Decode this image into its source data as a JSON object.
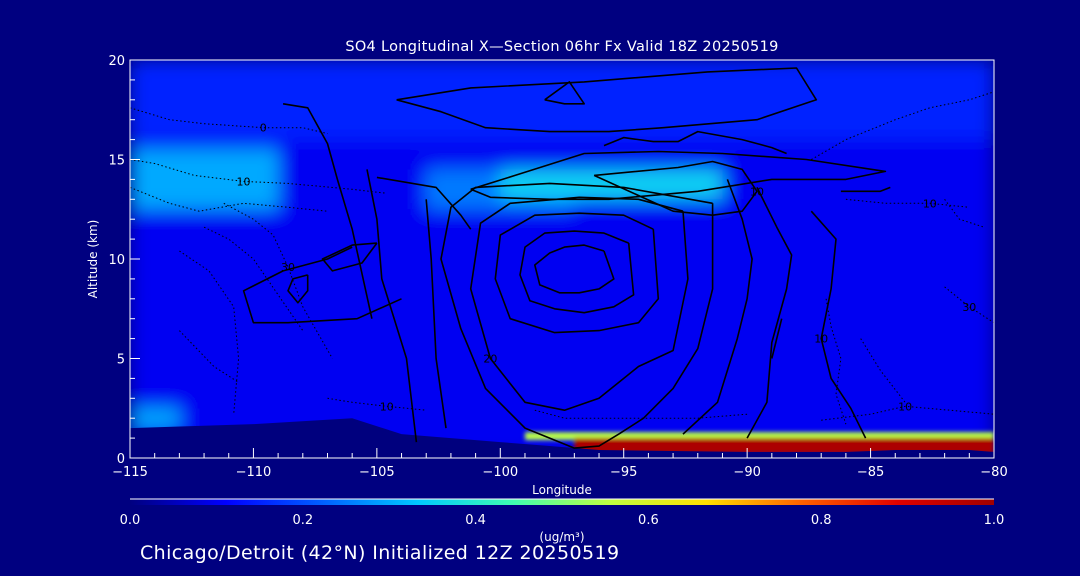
{
  "chart_data": {
    "type": "heatmap",
    "title": "SO4 Longitudinal X—Section 06hr  Fx Valid 18Z 20250519",
    "xlabel": "Longitude",
    "ylabel": "Altitude (km)",
    "xlim": [
      -115,
      -80
    ],
    "ylim": [
      0,
      20
    ],
    "x_ticks": [
      -115,
      -110,
      -105,
      -100,
      -95,
      -90,
      -85,
      -80
    ],
    "y_ticks": [
      0,
      5,
      10,
      15,
      20
    ],
    "colorbar": {
      "unit": "(ug/m³)",
      "min": 0.0,
      "max": 1.0,
      "ticks": [
        "0.0",
        "0.2",
        "0.4",
        "0.6",
        "0.8",
        "1.0"
      ],
      "colors": [
        "#000080",
        "#0000ff",
        "#0060ff",
        "#00c8ff",
        "#40ffb0",
        "#c0ff40",
        "#ffe000",
        "#ff6000",
        "#e00000",
        "#a00000"
      ]
    },
    "field_regions": [
      {
        "x": [
          -115,
          -80
        ],
        "y": [
          0,
          20
        ],
        "value": 0.1
      },
      {
        "x": [
          -115,
          -80
        ],
        "y": [
          16,
          20
        ],
        "value": 0.15
      },
      {
        "x": [
          -115,
          -109
        ],
        "y": [
          12.5,
          15.5
        ],
        "value": 0.3
      },
      {
        "x": [
          -103,
          -97
        ],
        "y": [
          12.5,
          14.5
        ],
        "value": 0.25
      },
      {
        "x": [
          -100,
          -91
        ],
        "y": [
          13,
          14.5
        ],
        "value": 0.35
      },
      {
        "x": [
          -115,
          -113
        ],
        "y": [
          1.5,
          2.5
        ],
        "value": 0.3
      },
      {
        "x": [
          -99,
          -80
        ],
        "y": [
          0.9,
          1.3
        ],
        "value": 0.55
      },
      {
        "x": [
          -97,
          -80
        ],
        "y": [
          0.2,
          1.0
        ],
        "value": 0.98
      }
    ],
    "terrain": {
      "x": [
        -115,
        -110,
        -106,
        -104,
        -100,
        -98,
        -96,
        -90,
        -86,
        -84,
        -81,
        -80
      ],
      "y": [
        1.5,
        1.7,
        2.0,
        1.2,
        0.8,
        0.6,
        0.4,
        0.3,
        0.3,
        0.4,
        0.4,
        0.3
      ]
    },
    "contours_solid": [
      {
        "label": "",
        "x": [
          -95.8,
          -95.4,
          -96.0,
          -96.4,
          -96.8,
          -97.6,
          -98.4,
          -98.6,
          -98.0,
          -97.4,
          -96.6,
          -95.8
        ],
        "y": [
          10.4,
          9.0,
          8.5,
          8.4,
          8.3,
          8.3,
          8.7,
          9.7,
          10.3,
          10.6,
          10.7,
          10.4
        ]
      },
      {
        "label": "",
        "x": [
          -94.8,
          -94.6,
          -95.4,
          -96.6,
          -97.8,
          -98.8,
          -99.2,
          -99.0,
          -98.2,
          -97.0,
          -95.8,
          -94.8
        ],
        "y": [
          10.8,
          8.2,
          7.6,
          7.3,
          7.5,
          7.9,
          9.2,
          10.6,
          11.3,
          11.4,
          11.3,
          10.8
        ]
      },
      {
        "label": "",
        "x": [
          -93.8,
          -93.6,
          -94.4,
          -96.0,
          -97.8,
          -99.6,
          -100.2,
          -100.0,
          -98.6,
          -96.8,
          -95.0,
          -93.8
        ],
        "y": [
          11.5,
          8.0,
          6.8,
          6.4,
          6.3,
          7.0,
          9.0,
          11.2,
          12.2,
          12.3,
          12.2,
          11.5
        ]
      },
      {
        "label": "20",
        "x": [
          -92.6,
          -92.4,
          -93.0,
          -94.4,
          -96.0,
          -97.4,
          -99.0,
          -100.4,
          -101.2,
          -100.8,
          -99.6,
          -96.8,
          -94.4,
          -92.6
        ],
        "y": [
          12.4,
          9.0,
          5.4,
          4.6,
          3.0,
          2.4,
          2.8,
          5.0,
          8.5,
          11.8,
          12.8,
          13.1,
          13.0,
          12.4
        ]
      },
      {
        "label": "",
        "x": [
          -91.4,
          -91.4,
          -92.0,
          -93.0,
          -94.2,
          -95.2,
          -96.0,
          -97.0,
          -99.0,
          -100.6,
          -101.6,
          -102.4,
          -102.0,
          -101.0,
          -98.0,
          -95.0,
          -91.4
        ],
        "y": [
          12.8,
          8.5,
          5.5,
          3.5,
          2.0,
          1.2,
          0.6,
          0.5,
          1.5,
          3.5,
          6.5,
          10.0,
          12.6,
          13.6,
          13.8,
          13.6,
          12.8
        ]
      },
      {
        "label": "10",
        "x": [
          -96.2,
          -92.8,
          -91.4,
          -90.2,
          -89.6,
          -90.2,
          -91.4,
          -93.0,
          -96.2
        ],
        "y": [
          14.2,
          14.6,
          14.9,
          14.5,
          13.4,
          12.4,
          12.2,
          12.4,
          14.2
        ]
      },
      {
        "label": "",
        "x": [
          -101.2,
          -99.4,
          -96.6,
          -93.6,
          -91.0,
          -87.6,
          -84.4,
          -86.0,
          -89.0,
          -92.0,
          -95.6,
          -98.0,
          -100.4,
          -101.2
        ],
        "y": [
          13.5,
          14.2,
          15.3,
          15.4,
          15.3,
          15.0,
          14.4,
          14.0,
          14.0,
          13.4,
          13.0,
          13.0,
          13.1,
          13.5
        ]
      },
      {
        "label": "",
        "x": [
          -105,
          -102.6,
          -101.6,
          -101.2
        ],
        "y": [
          14.1,
          13.6,
          12.2,
          11.5
        ]
      },
      {
        "label": "",
        "x": [
          -95.8,
          -95.0,
          -93.8,
          -92.8,
          -92.0,
          -90.2,
          -89.0,
          -88.4
        ],
        "y": [
          15.7,
          16.1,
          15.9,
          15.9,
          16.4,
          16.0,
          15.6,
          15.3
        ]
      },
      {
        "label": "",
        "x": [
          -86.2,
          -84.6,
          -84.2
        ],
        "y": [
          13.4,
          13.4,
          13.6
        ]
      },
      {
        "label": "",
        "x": [
          -90.8,
          -90.2,
          -89.8,
          -90.0,
          -90.4,
          -91.2,
          -92.6
        ],
        "y": [
          14.0,
          12.0,
          10.0,
          8.0,
          6.0,
          2.8,
          1.2
        ]
      },
      {
        "label": "",
        "x": [
          -89.6,
          -88.8,
          -88.2,
          -88.4,
          -89.0,
          -89.2,
          -90.0
        ],
        "y": [
          13.6,
          11.6,
          10.2,
          8.5,
          5.8,
          2.8,
          1.0
        ]
      },
      {
        "label": "10",
        "x": [
          -87.4,
          -86.4,
          -86.6,
          -87.0,
          -86.6,
          -85.8,
          -85.2
        ],
        "y": [
          12.4,
          11.0,
          8.5,
          6.0,
          4.0,
          2.5,
          1.0
        ]
      },
      {
        "label": "",
        "x": [
          -88.6,
          -89.0
        ],
        "y": [
          7.0,
          5.0
        ]
      },
      {
        "label": "",
        "x": [
          -103,
          -102.8,
          -102.6,
          -102.2
        ],
        "y": [
          13.0,
          10.0,
          5.0,
          1.5
        ]
      },
      {
        "label": "",
        "x": [
          -105.4,
          -105.0,
          -104.8,
          -103.8,
          -103.4
        ],
        "y": [
          14.5,
          12.0,
          9.0,
          5.0,
          0.8
        ]
      },
      {
        "label": "",
        "x": [
          -108.8,
          -107.8,
          -107.0,
          -106.6,
          -106.0,
          -105.2
        ],
        "y": [
          17.8,
          17.6,
          15.8,
          14.0,
          11.5,
          7.0
        ]
      },
      {
        "label": "",
        "x": [
          -106.0,
          -107.0,
          -108.8,
          -110.4,
          -110.0,
          -108.6,
          -105.8,
          -104.0
        ],
        "y": [
          10.6,
          10.0,
          9.4,
          8.4,
          6.8,
          6.8,
          7.0,
          8.0
        ]
      },
      {
        "label": "",
        "x": [
          -107.8,
          -108.4,
          -108.6,
          -108.2,
          -107.8,
          -107.8
        ],
        "y": [
          9.2,
          9.0,
          8.4,
          7.8,
          8.4,
          9.2
        ]
      },
      {
        "label": "",
        "x": [
          -105.0,
          -106.0,
          -107.2,
          -106.8,
          -105.6,
          -105.0
        ],
        "y": [
          10.8,
          10.7,
          10.0,
          9.4,
          9.8,
          10.8
        ]
      },
      {
        "label": "",
        "x": [
          -104.2,
          -101.2,
          -96.6,
          -91.6,
          -88.0,
          -87.2,
          -89.6,
          -93.4,
          -95.6,
          -98.0,
          -100.6,
          -102.4,
          -104.2
        ],
        "y": [
          18.0,
          18.6,
          18.9,
          19.4,
          19.6,
          18.0,
          17.0,
          16.6,
          16.4,
          16.4,
          16.6,
          17.4,
          18.0
        ]
      },
      {
        "label": "",
        "x": [
          -98.2,
          -97.2,
          -96.6,
          -97.4,
          -98.2
        ],
        "y": [
          18.0,
          18.9,
          17.8,
          17.8,
          18.0
        ]
      }
    ],
    "contours_dotted": [
      {
        "label": "0",
        "x": [
          -115,
          -113.4,
          -112.0,
          -109.6,
          -108.0,
          -107.0
        ],
        "y": [
          17.6,
          17.0,
          16.8,
          16.6,
          16.6,
          16.3
        ]
      },
      {
        "label": "10",
        "x": [
          -115,
          -114.0,
          -112.4,
          -110.4,
          -108.6,
          -106.0,
          -104.6
        ],
        "y": [
          15.0,
          14.8,
          14.2,
          13.9,
          13.8,
          13.5,
          13.3
        ]
      },
      {
        "label": "",
        "x": [
          -115,
          -113.4,
          -112.2,
          -110.4,
          -108.6,
          -107.0
        ],
        "y": [
          13.6,
          12.8,
          12.4,
          12.8,
          12.6,
          12.4
        ]
      },
      {
        "label": "",
        "x": [
          -112.0,
          -111.0,
          -110.0,
          -109.0,
          -108.0
        ],
        "y": [
          11.6,
          11.0,
          10.0,
          8.2,
          6.4
        ]
      },
      {
        "label": "30",
        "x": [
          -111.2,
          -110.0,
          -109.2,
          -108.6,
          -108.0,
          -106.8
        ],
        "y": [
          12.8,
          12.0,
          11.2,
          9.6,
          7.6,
          5.0
        ]
      },
      {
        "label": "",
        "x": [
          -113.0,
          -111.8,
          -110.8,
          -110.6,
          -110.8
        ],
        "y": [
          10.4,
          9.4,
          7.6,
          5.0,
          2.2
        ]
      },
      {
        "label": "",
        "x": [
          -113.0,
          -111.6,
          -110.6
        ],
        "y": [
          6.4,
          4.6,
          3.8
        ]
      },
      {
        "label": "10",
        "x": [
          -107.0,
          -106.0,
          -104.6,
          -103.0
        ],
        "y": [
          3.0,
          2.8,
          2.6,
          2.4
        ]
      },
      {
        "label": "",
        "x": [
          -98.6,
          -97.4,
          -95.0,
          -92.0,
          -90.0
        ],
        "y": [
          2.4,
          2.0,
          2.0,
          2.0,
          2.2
        ]
      },
      {
        "label": "10",
        "x": [
          -87.0,
          -85.0,
          -83.6,
          -81.8,
          -80.0
        ],
        "y": [
          1.9,
          2.2,
          2.6,
          2.4,
          2.2
        ]
      },
      {
        "label": "",
        "x": [
          -86.8,
          -86.6,
          -86.2,
          -86.4,
          -86.0
        ],
        "y": [
          8.0,
          6.6,
          5.0,
          3.2,
          1.7
        ]
      },
      {
        "label": "",
        "x": [
          -85.4,
          -84.6,
          -83.6
        ],
        "y": [
          6.0,
          4.4,
          2.8
        ]
      },
      {
        "label": "",
        "x": [
          -82.0,
          -81.4,
          -80.4
        ],
        "y": [
          13.0,
          12.0,
          11.6
        ]
      },
      {
        "label": "30",
        "x": [
          -82.0,
          -81.0,
          -80.0
        ],
        "y": [
          8.6,
          7.6,
          6.8
        ]
      },
      {
        "label": "",
        "x": [
          -87.4,
          -86.0,
          -84.0,
          -82.6,
          -81.0,
          -80.0
        ],
        "y": [
          15.0,
          16.0,
          17.0,
          17.6,
          18.0,
          18.4
        ]
      },
      {
        "label": "10",
        "x": [
          -86.0,
          -84.4,
          -82.6,
          -81.0
        ],
        "y": [
          13.0,
          12.8,
          12.8,
          12.6
        ]
      }
    ]
  },
  "caption": "Chicago/Detroit (42°N) Initialized 12Z 20250519"
}
